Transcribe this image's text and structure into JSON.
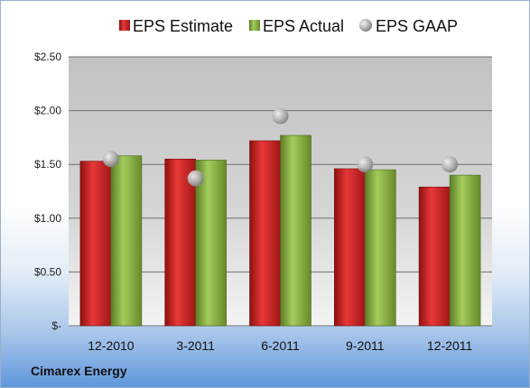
{
  "company": "Cimarex Energy",
  "colors": {
    "estimate": "#d42a2a",
    "actual": "#8ab346",
    "gaap": "#b8b8b8"
  },
  "chart_data": {
    "type": "bar",
    "categories": [
      "12-2010",
      "3-2011",
      "6-2011",
      "9-2011",
      "12-2011"
    ],
    "series": [
      {
        "name": "EPS Estimate",
        "values": [
          1.53,
          1.55,
          1.72,
          1.46,
          1.29
        ]
      },
      {
        "name": "EPS Actual",
        "values": [
          1.58,
          1.54,
          1.77,
          1.45,
          1.4
        ]
      },
      {
        "name": "EPS GAAP",
        "type": "scatter",
        "values": [
          1.55,
          1.37,
          1.95,
          1.5,
          1.5
        ]
      }
    ],
    "y_ticks": [
      {
        "value": 0,
        "label": "$-"
      },
      {
        "value": 0.5,
        "label": "$0.50"
      },
      {
        "value": 1.0,
        "label": "$1.00"
      },
      {
        "value": 1.5,
        "label": "$1.50"
      },
      {
        "value": 2.0,
        "label": "$2.00"
      },
      {
        "value": 2.5,
        "label": "$2.50"
      }
    ],
    "ylim": [
      0,
      2.5
    ],
    "grid": true,
    "legend": "top"
  }
}
